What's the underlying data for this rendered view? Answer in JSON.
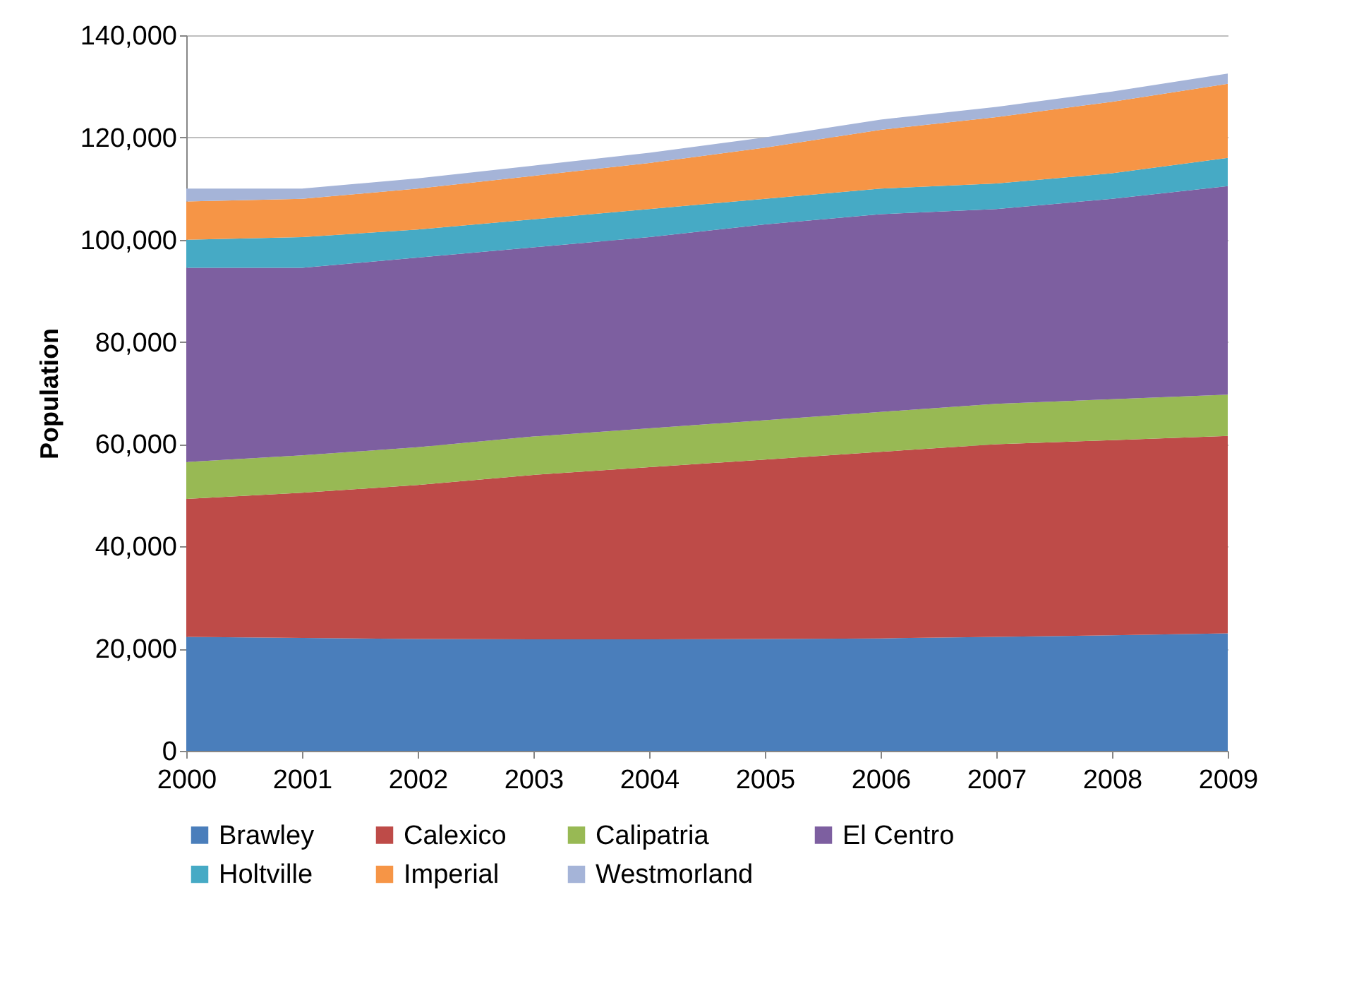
{
  "chart_data": {
    "type": "area",
    "stacked": true,
    "ylabel": "Population",
    "categories": [
      "2000",
      "2001",
      "2002",
      "2003",
      "2004",
      "2005",
      "2006",
      "2007",
      "2008",
      "2009"
    ],
    "series": [
      {
        "name": "Brawley",
        "color": "#4a7ebb",
        "values": [
          22300,
          22100,
          21900,
          21800,
          21800,
          21900,
          22000,
          22300,
          22600,
          23000
        ]
      },
      {
        "name": "Calexico",
        "color": "#be4b48",
        "values": [
          27000,
          28400,
          30100,
          32200,
          33700,
          35100,
          36500,
          37700,
          38200,
          38600
        ]
      },
      {
        "name": "Calipatria",
        "color": "#98b954",
        "values": [
          7200,
          7300,
          7400,
          7500,
          7600,
          7700,
          7800,
          7900,
          8000,
          8100
        ]
      },
      {
        "name": "El Centro",
        "color": "#7d5fa0",
        "values": [
          38000,
          36700,
          37100,
          37000,
          37400,
          38300,
          38700,
          38100,
          39200,
          40800
        ]
      },
      {
        "name": "Holtville",
        "color": "#46aac5",
        "values": [
          5500,
          6000,
          5500,
          5500,
          5500,
          5000,
          5000,
          5000,
          5000,
          5500
        ]
      },
      {
        "name": "Imperial",
        "color": "#f69546",
        "values": [
          7500,
          7500,
          8000,
          8500,
          9000,
          10000,
          11500,
          13000,
          14000,
          14500
        ]
      },
      {
        "name": "Westmorland",
        "color": "#a5b4d8",
        "values": [
          2500,
          2000,
          2000,
          2000,
          2000,
          2000,
          2000,
          2000,
          2000,
          2000
        ]
      }
    ],
    "ylim": [
      0,
      140000
    ],
    "yticks": [
      0,
      {
        "value": 20000,
        "label": "20,000"
      },
      {
        "value": 40000,
        "label": "40,000"
      },
      {
        "value": 60000,
        "label": "60,000"
      },
      {
        "value": 80000,
        "label": "80,000"
      },
      {
        "value": 100000,
        "label": "100,000"
      },
      {
        "value": 120000,
        "label": "120,000"
      },
      {
        "value": 140000,
        "label": "140,000"
      }
    ],
    "grid": "y",
    "legend": "bottom"
  }
}
